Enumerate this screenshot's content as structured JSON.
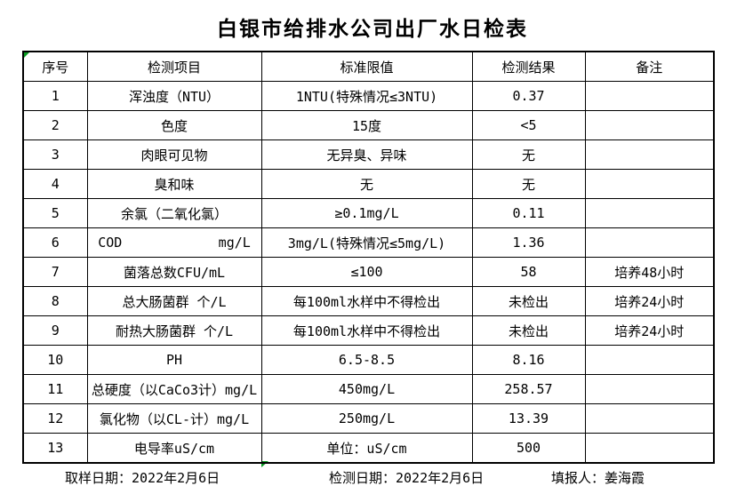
{
  "title": "白银市给排水公司出厂水日检表",
  "colors": {
    "background": "#ffffff",
    "text": "#000000",
    "border": "#000000",
    "marker_green": "#0a9b22"
  },
  "icons": {
    "error_marker": "green-corner-triangle"
  },
  "table": {
    "headers": [
      "序号",
      "检测项目",
      "标准限值",
      "检测结果",
      "备注"
    ],
    "rows": [
      {
        "no": "1",
        "item": "浑浊度（NTU）",
        "limit": "1NTU(特殊情况≤3NTU)",
        "result": "0.37",
        "remark": ""
      },
      {
        "no": "2",
        "item": "色度",
        "limit": "15度",
        "result": "<5",
        "remark": ""
      },
      {
        "no": "3",
        "item": "肉眼可见物",
        "limit": "无异臭、异味",
        "result": "无",
        "remark": ""
      },
      {
        "no": "4",
        "item": "臭和味",
        "limit": "无",
        "result": "无",
        "remark": ""
      },
      {
        "no": "5",
        "item": "余氯（二氧化氯）",
        "limit": "≥0.1mg/L",
        "result": "0.11",
        "remark": ""
      },
      {
        "no": "6",
        "item": "COD            mg/L",
        "limit": "3mg/L(特殊情况≤5mg/L)",
        "result": "1.36",
        "remark": ""
      },
      {
        "no": "7",
        "item": "菌落总数CFU/mL",
        "limit": "≤100",
        "result": "58",
        "remark": "培养48小时"
      },
      {
        "no": "8",
        "item": "总大肠菌群 个/L",
        "limit": "每100ml水样中不得检出",
        "result": "未检出",
        "remark": "培养24小时"
      },
      {
        "no": "9",
        "item": "耐热大肠菌群 个/L",
        "limit": "每100ml水样中不得检出",
        "result": "未检出",
        "remark": "培养24小时"
      },
      {
        "no": "10",
        "item": "PH",
        "limit": "6.5-8.5",
        "result": "8.16",
        "remark": ""
      },
      {
        "no": "11",
        "item": "总硬度（以CaCo3计）mg/L",
        "limit": "450mg/L",
        "result": "258.57",
        "remark": ""
      },
      {
        "no": "12",
        "item": "氯化物（以CL-计）mg/L",
        "limit": "250mg/L",
        "result": "13.39",
        "remark": ""
      },
      {
        "no": "13",
        "item": "电导率uS/cm",
        "limit": "单位：uS/cm",
        "result": "500",
        "remark": ""
      }
    ]
  },
  "footer": {
    "sampling_date": "取样日期：2022年2月6日",
    "test_date": "检测日期：2022年2月6日",
    "reporter": "填报人：姜海霞"
  }
}
